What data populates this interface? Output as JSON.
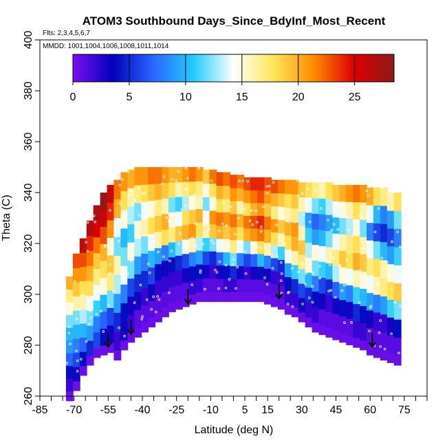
{
  "chart_data": {
    "type": "heatmap",
    "title": "ATOM3 Southbound Days_Since_BdyInf_Most_Recent",
    "flights_note": "Flts: 2,3,4,5,6,7",
    "dates_note": "MMDD: 1001,1004,1006,1008,1011,1014",
    "xlabel": "Latitude (deg N)",
    "ylabel": "Theta (C)",
    "xlim": [
      -85,
      85
    ],
    "ylim": [
      260,
      400
    ],
    "x_ticks": [
      "-85",
      "-70",
      "-55",
      "-40",
      "-25",
      "-10",
      "5",
      "15",
      "30",
      "45",
      "60",
      "75"
    ],
    "y_ticks": [
      "260",
      "280",
      "300",
      "320",
      "340",
      "360",
      "380",
      "400"
    ],
    "colorbar": {
      "range": [
        0,
        28.5
      ],
      "ticks": [
        "0",
        "5",
        "10",
        "15",
        "20",
        "25"
      ],
      "stops": [
        "#7a10f0",
        "#0000bb",
        "#2a66ff",
        "#22ccff",
        "#ffffff",
        "#ffe65a",
        "#ff8c00",
        "#dd0000",
        "#8b1a1a"
      ]
    },
    "columns": [
      {
        "lat": -72,
        "bottom": 262,
        "top": 307,
        "values": [
          2,
          4,
          7,
          9,
          10,
          12,
          15,
          17,
          20
        ]
      },
      {
        "lat": -69,
        "bottom": 266,
        "top": 316,
        "values": [
          3,
          6,
          8,
          10,
          12,
          16,
          19,
          21,
          23
        ]
      },
      {
        "lat": -66,
        "bottom": 272,
        "top": 322,
        "values": [
          4,
          7,
          10,
          13,
          16,
          18,
          21,
          23,
          26
        ]
      },
      {
        "lat": -63,
        "bottom": 276,
        "top": 329,
        "values": [
          5,
          9,
          12,
          14,
          18,
          20,
          22,
          24,
          27
        ]
      },
      {
        "lat": -60,
        "bottom": 279,
        "top": 335,
        "values": [
          6,
          8,
          11,
          14,
          17,
          19,
          22,
          25,
          27
        ]
      },
      {
        "lat": -57,
        "bottom": 280,
        "top": 340,
        "values": [
          4,
          7,
          10,
          15,
          18,
          20,
          23,
          26,
          28
        ]
      },
      {
        "lat": -54,
        "bottom": 281,
        "top": 343,
        "values": [
          3,
          6,
          12,
          17,
          19,
          15,
          21,
          24,
          26
        ]
      },
      {
        "lat": -51,
        "bottom": 278,
        "top": 345,
        "values": [
          2,
          5,
          9,
          13,
          16,
          12,
          14,
          20,
          22
        ]
      },
      {
        "lat": -48,
        "bottom": 282,
        "top": 348,
        "values": [
          3,
          4,
          8,
          14,
          12,
          10,
          15,
          18,
          21
        ]
      },
      {
        "lat": -45,
        "bottom": 285,
        "top": 349,
        "values": [
          2,
          3,
          6,
          12,
          15,
          11,
          13,
          16,
          20
        ]
      },
      {
        "lat": -42,
        "bottom": 287,
        "top": 350,
        "values": [
          1,
          3,
          5,
          9,
          13,
          15,
          12,
          17,
          21
        ]
      },
      {
        "lat": -39,
        "bottom": 289,
        "top": 350,
        "values": [
          1,
          2,
          5,
          8,
          12,
          16,
          14,
          18,
          21
        ]
      },
      {
        "lat": -36,
        "bottom": 291,
        "top": 350,
        "values": [
          1,
          3,
          6,
          10,
          14,
          18,
          15,
          19,
          22
        ]
      },
      {
        "lat": -33,
        "bottom": 293,
        "top": 350,
        "values": [
          1,
          2,
          4,
          9,
          16,
          19,
          17,
          20,
          22
        ]
      },
      {
        "lat": -30,
        "bottom": 295,
        "top": 350,
        "values": [
          1,
          2,
          3,
          8,
          18,
          20,
          16,
          19,
          21
        ]
      },
      {
        "lat": -27,
        "bottom": 297,
        "top": 350,
        "values": [
          1,
          2,
          4,
          10,
          17,
          15,
          12,
          18,
          20
        ]
      },
      {
        "lat": -24,
        "bottom": 298,
        "top": 350,
        "values": [
          1,
          2,
          5,
          12,
          19,
          14,
          11,
          16,
          20
        ]
      },
      {
        "lat": -21,
        "bottom": 299,
        "top": 350,
        "values": [
          1,
          3,
          6,
          14,
          20,
          18,
          13,
          17,
          21
        ]
      },
      {
        "lat": -18,
        "bottom": 300,
        "top": 350,
        "values": [
          2,
          4,
          8,
          16,
          21,
          19,
          15,
          18,
          22
        ]
      },
      {
        "lat": -15,
        "bottom": 301,
        "top": 350,
        "values": [
          2,
          4,
          9,
          13,
          18,
          20,
          16,
          17,
          21
        ]
      },
      {
        "lat": -12,
        "bottom": 301,
        "top": 349,
        "values": [
          1,
          3,
          6,
          11,
          16,
          14,
          12,
          15,
          19
        ]
      },
      {
        "lat": -9,
        "bottom": 301,
        "top": 349,
        "values": [
          1,
          2,
          5,
          12,
          19,
          21,
          15,
          18,
          22
        ]
      },
      {
        "lat": -6,
        "bottom": 301,
        "top": 348,
        "values": [
          1,
          3,
          7,
          14,
          20,
          22,
          18,
          20,
          23
        ]
      },
      {
        "lat": -3,
        "bottom": 301,
        "top": 348,
        "values": [
          2,
          4,
          10,
          15,
          19,
          21,
          17,
          19,
          22
        ]
      },
      {
        "lat": 0,
        "bottom": 301,
        "top": 347,
        "values": [
          2,
          5,
          12,
          17,
          20,
          22,
          19,
          21,
          23
        ]
      },
      {
        "lat": 3,
        "bottom": 301,
        "top": 347,
        "values": [
          1,
          3,
          8,
          14,
          18,
          20,
          16,
          20,
          22
        ]
      },
      {
        "lat": 6,
        "bottom": 301,
        "top": 346,
        "values": [
          1,
          2,
          6,
          12,
          20,
          22,
          18,
          21,
          23
        ]
      },
      {
        "lat": 9,
        "bottom": 301,
        "top": 346,
        "values": [
          1,
          3,
          7,
          15,
          21,
          23,
          20,
          22,
          24
        ]
      },
      {
        "lat": 12,
        "bottom": 301,
        "top": 346,
        "values": [
          1,
          4,
          10,
          18,
          22,
          24,
          21,
          23,
          24
        ]
      },
      {
        "lat": 15,
        "bottom": 300,
        "top": 346,
        "values": [
          1,
          3,
          8,
          16,
          20,
          22,
          19,
          21,
          23
        ]
      },
      {
        "lat": 18,
        "bottom": 299,
        "top": 345,
        "values": [
          1,
          2,
          6,
          13,
          18,
          21,
          17,
          20,
          23
        ]
      },
      {
        "lat": 21,
        "bottom": 298,
        "top": 345,
        "values": [
          1,
          2,
          5,
          11,
          16,
          19,
          15,
          19,
          22
        ]
      },
      {
        "lat": 24,
        "bottom": 296,
        "top": 345,
        "values": [
          2,
          4,
          9,
          14,
          18,
          20,
          16,
          18,
          21
        ]
      },
      {
        "lat": 27,
        "bottom": 295,
        "top": 345,
        "values": [
          2,
          5,
          11,
          16,
          20,
          21,
          17,
          19,
          21
        ]
      },
      {
        "lat": 30,
        "bottom": 293,
        "top": 344,
        "values": [
          3,
          6,
          12,
          17,
          19,
          16,
          13,
          16,
          19
        ]
      },
      {
        "lat": 33,
        "bottom": 291,
        "top": 344,
        "values": [
          2,
          5,
          10,
          15,
          13,
          11,
          9,
          14,
          18
        ]
      },
      {
        "lat": 36,
        "bottom": 289,
        "top": 344,
        "values": [
          2,
          4,
          8,
          12,
          15,
          9,
          7,
          12,
          17
        ]
      },
      {
        "lat": 39,
        "bottom": 288,
        "top": 344,
        "values": [
          1,
          3,
          6,
          11,
          14,
          10,
          8,
          11,
          16
        ]
      },
      {
        "lat": 42,
        "bottom": 287,
        "top": 344,
        "values": [
          1,
          2,
          5,
          10,
          16,
          12,
          9,
          13,
          18
        ]
      },
      {
        "lat": 45,
        "bottom": 286,
        "top": 343,
        "values": [
          1,
          3,
          7,
          13,
          17,
          14,
          10,
          14,
          19
        ]
      },
      {
        "lat": 48,
        "bottom": 285,
        "top": 343,
        "values": [
          1,
          4,
          9,
          15,
          19,
          16,
          12,
          15,
          20
        ]
      },
      {
        "lat": 51,
        "bottom": 284,
        "top": 343,
        "values": [
          1,
          3,
          8,
          14,
          18,
          17,
          13,
          16,
          21
        ]
      },
      {
        "lat": 54,
        "bottom": 283,
        "top": 343,
        "values": [
          2,
          5,
          11,
          16,
          20,
          18,
          15,
          18,
          22
        ]
      },
      {
        "lat": 57,
        "bottom": 282,
        "top": 343,
        "values": [
          2,
          4,
          10,
          15,
          19,
          16,
          12,
          16,
          21
        ]
      },
      {
        "lat": 60,
        "bottom": 280,
        "top": 342,
        "values": [
          1,
          3,
          9,
          14,
          17,
          14,
          8,
          14,
          20
        ]
      },
      {
        "lat": 63,
        "bottom": 279,
        "top": 342,
        "values": [
          1,
          2,
          8,
          16,
          18,
          12,
          6,
          10,
          18
        ]
      },
      {
        "lat": 66,
        "bottom": 278,
        "top": 342,
        "values": [
          1,
          2,
          9,
          17,
          16,
          10,
          5,
          8,
          17
        ]
      },
      {
        "lat": 69,
        "bottom": 277,
        "top": 340,
        "values": [
          1,
          3,
          11,
          18,
          15,
          9,
          6,
          9,
          16
        ]
      },
      {
        "lat": 72,
        "bottom": 276,
        "top": 340,
        "values": [
          1,
          4,
          12,
          19,
          14,
          11,
          8,
          12,
          18
        ]
      }
    ],
    "arrows": [
      {
        "lat": -55,
        "theta": 285
      },
      {
        "lat": -45,
        "theta": 290
      },
      {
        "lat": -20,
        "theta": 302
      },
      {
        "lat": 20,
        "theta": 304
      },
      {
        "lat": 61,
        "theta": 285
      }
    ]
  }
}
